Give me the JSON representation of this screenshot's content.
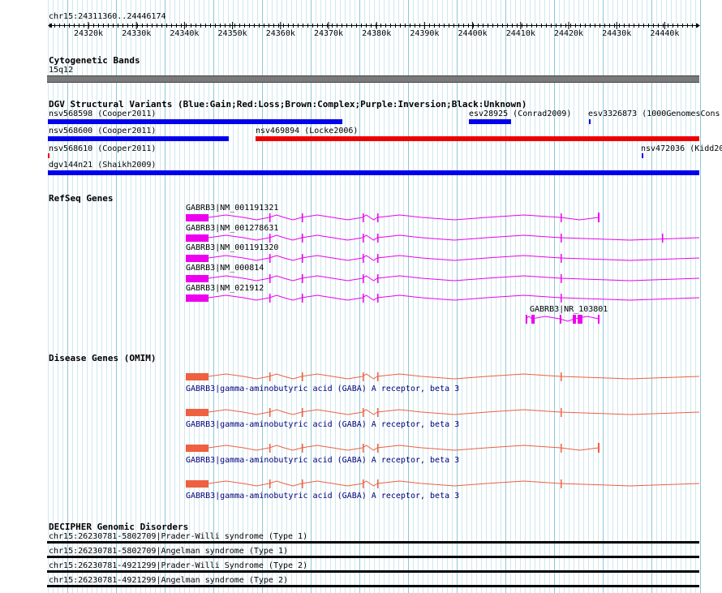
{
  "ruler": {
    "range_label": "chr15:24311360..24446174",
    "ticks": [
      "24320k",
      "24330k",
      "24340k",
      "24350k",
      "24360k",
      "24370k",
      "24380k",
      "24390k",
      "24400k",
      "24410k",
      "24420k",
      "24430k",
      "24440k"
    ]
  },
  "cyto": {
    "title": "Cytogenetic Bands",
    "band": "15q12"
  },
  "dgv": {
    "title": "DGV Structural Variants (Blue:Gain;Red:Loss;Brown:Complex;Purple:Inversion;Black:Unknown)",
    "items": [
      {
        "label": "nsv568598 (Cooper2011)",
        "color": "#0000ee"
      },
      {
        "label": "esv28925 (Conrad2009)",
        "color": "#0000ee"
      },
      {
        "label": "esv3326873 (1000GenomesCons",
        "color": "#0000ee"
      },
      {
        "label": "nsv568600 (Cooper2011)",
        "color": "#0000ee"
      },
      {
        "label": "nsv469894 (Locke2006)",
        "color": "#ee0000"
      },
      {
        "label": "nsv568610 (Cooper2011)",
        "color": "#ee0000"
      },
      {
        "label": "nsv472036 (Kidd20",
        "color": "#0000ee"
      },
      {
        "label": "dgv144n21 (Shaikh2009)",
        "color": "#0000ee"
      }
    ]
  },
  "refseq": {
    "title": "RefSeq Genes",
    "color": "#ee00ee",
    "genes": [
      {
        "label": "GABRB3|NM_001191321"
      },
      {
        "label": "GABRB3|NM_001278631"
      },
      {
        "label": "GABRB3|NM_001191320"
      },
      {
        "label": "GABRB3|NM_000814"
      },
      {
        "label": "GABRB3|NM_021912"
      },
      {
        "label": "GABRB3|NR_103801"
      }
    ]
  },
  "omim": {
    "title": "Disease Genes (OMIM)",
    "color": "#ee6040",
    "genes": [
      {
        "label": "GABRB3|gamma-aminobutyric acid (GABA) A receptor, beta 3"
      },
      {
        "label": "GABRB3|gamma-aminobutyric acid (GABA) A receptor, beta 3"
      },
      {
        "label": "GABRB3|gamma-aminobutyric acid (GABA) A receptor, beta 3"
      },
      {
        "label": "GABRB3|gamma-aminobutyric acid (GABA) A receptor, beta 3"
      }
    ]
  },
  "decipher": {
    "title": "DECIPHER Genomic Disorders",
    "items": [
      {
        "label": "chr15:26230781-5802709|Prader-Willi syndrome (Type 1)"
      },
      {
        "label": "chr15:26230781-5802709|Angelman syndrome (Type 1)"
      },
      {
        "label": "chr15:26230781-4921299|Prader-Willi Syndrome (Type 2)"
      },
      {
        "label": "chr15:26230781-4921299|Angelman syndrome (Type 2)"
      }
    ]
  }
}
